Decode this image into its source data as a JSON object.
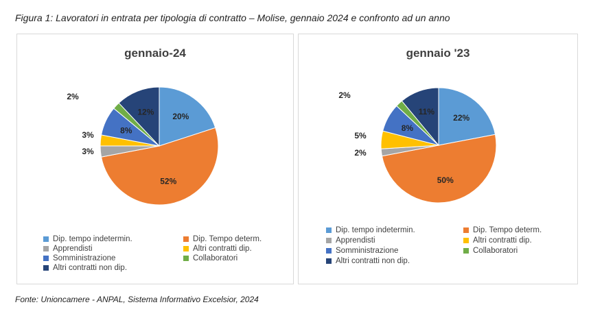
{
  "caption": "Figura 1: Lavoratori in entrata per tipologia di contratto – Molise, gennaio 2024 e confronto ad un anno",
  "source": "Fonte: Unioncamere - ANPAL, Sistema Informativo Excelsior, 2024",
  "chart_data": [
    {
      "type": "pie",
      "title": "gennaio-24",
      "categories": [
        "Dip. tempo indetermin.",
        "Dip. Tempo determ.",
        "Apprendisti",
        "Altri contratti dip.",
        "Somministrazione",
        "Collaboratori",
        "Altri contratti non dip."
      ],
      "values": [
        20,
        52,
        3,
        3,
        8,
        2,
        12
      ],
      "labels": [
        "20%",
        "52%",
        "3%",
        "3%",
        "8%",
        "2%",
        "12%"
      ],
      "colors": [
        "#5b9bd5",
        "#ed7d31",
        "#a5a5a5",
        "#ffc000",
        "#4472c4",
        "#70ad47",
        "#264478"
      ],
      "legend_position": "bottom"
    },
    {
      "type": "pie",
      "title": "gennaio '23",
      "categories": [
        "Dip. tempo indetermin.",
        "Dip. Tempo determ.",
        "Apprendisti",
        "Altri contratti dip.",
        "Somministrazione",
        "Collaboratori",
        "Altri contratti non dip."
      ],
      "values": [
        22,
        50,
        2,
        5,
        8,
        2,
        11
      ],
      "labels": [
        "22%",
        "50%",
        "2%",
        "5%",
        "8%",
        "2%",
        "11%"
      ],
      "colors": [
        "#5b9bd5",
        "#ed7d31",
        "#a5a5a5",
        "#ffc000",
        "#4472c4",
        "#70ad47",
        "#264478"
      ],
      "legend_position": "bottom"
    }
  ]
}
